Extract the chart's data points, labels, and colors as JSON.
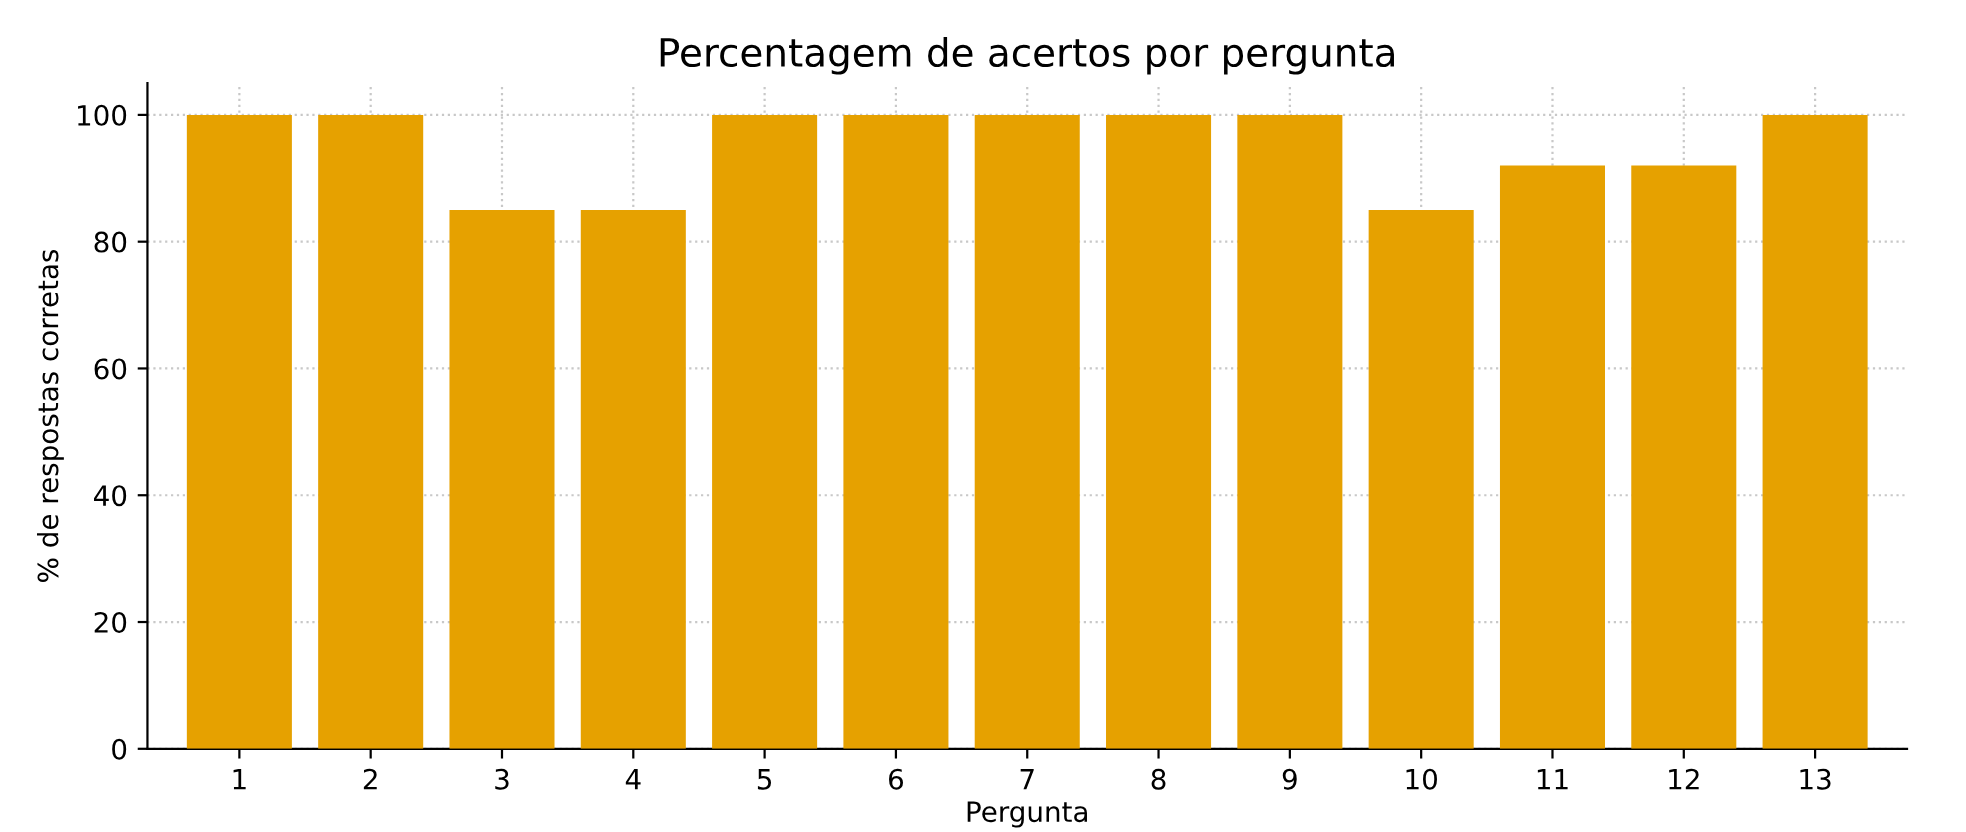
{
  "chart_data": {
    "type": "bar",
    "title": "Percentagem de acertos por pergunta",
    "xlabel": "Pergunta",
    "ylabel": "% de respostas corretas",
    "categories": [
      "1",
      "2",
      "3",
      "4",
      "5",
      "6",
      "7",
      "8",
      "9",
      "10",
      "11",
      "12",
      "13"
    ],
    "values": [
      100,
      100,
      85,
      85,
      100,
      100,
      100,
      100,
      100,
      85,
      92,
      92,
      100
    ],
    "color": "#e6a100",
    "ylim": [
      0,
      105
    ],
    "yticks": [
      0,
      20,
      40,
      60,
      80,
      100
    ],
    "grid": true
  }
}
